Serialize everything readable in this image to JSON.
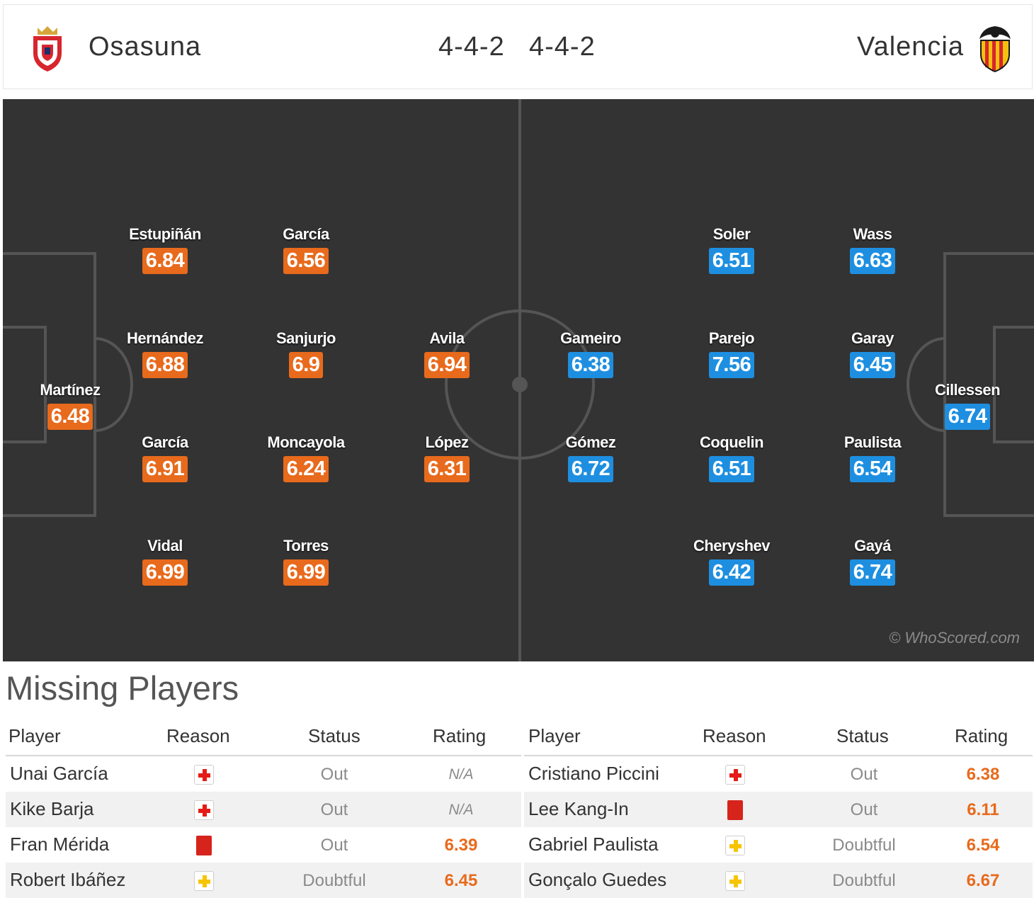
{
  "header": {
    "home_team": "Osasuna",
    "away_team": "Valencia",
    "home_formation": "4-4-2",
    "away_formation": "4-4-2",
    "home_crest_icon": "osasuna-crest-icon",
    "away_crest_icon": "valencia-crest-icon"
  },
  "pitch": {
    "watermark": "© WhoScored.com",
    "colors": {
      "home": "#e86a1c",
      "away": "#1e8fe0",
      "pitch": "#333333"
    },
    "home_players": [
      {
        "name": "Martínez",
        "rating": "6.48"
      },
      {
        "name": "Estupiñán",
        "rating": "6.84"
      },
      {
        "name": "Hernández",
        "rating": "6.88"
      },
      {
        "name": "García",
        "rating": "6.91"
      },
      {
        "name": "Vidal",
        "rating": "6.99"
      },
      {
        "name": "García",
        "rating": "6.56"
      },
      {
        "name": "Sanjurjo",
        "rating": "6.9"
      },
      {
        "name": "Moncayola",
        "rating": "6.24"
      },
      {
        "name": "Torres",
        "rating": "6.99"
      },
      {
        "name": "Avila",
        "rating": "6.94"
      },
      {
        "name": "López",
        "rating": "6.31"
      }
    ],
    "away_players": [
      {
        "name": "Gameiro",
        "rating": "6.38"
      },
      {
        "name": "Gómez",
        "rating": "6.72"
      },
      {
        "name": "Soler",
        "rating": "6.51"
      },
      {
        "name": "Parejo",
        "rating": "7.56"
      },
      {
        "name": "Coquelin",
        "rating": "6.51"
      },
      {
        "name": "Cheryshev",
        "rating": "6.42"
      },
      {
        "name": "Wass",
        "rating": "6.63"
      },
      {
        "name": "Garay",
        "rating": "6.45"
      },
      {
        "name": "Paulista",
        "rating": "6.54"
      },
      {
        "name": "Gayá",
        "rating": "6.74"
      },
      {
        "name": "Cillessen",
        "rating": "6.74"
      }
    ]
  },
  "missing": {
    "title": "Missing Players",
    "columns": {
      "player": "Player",
      "reason": "Reason",
      "status": "Status",
      "rating": "Rating"
    },
    "home": [
      {
        "player": "Unai García",
        "reason": "injury-icon",
        "status": "Out",
        "rating": "N/A"
      },
      {
        "player": "Kike Barja",
        "reason": "injury-icon",
        "status": "Out",
        "rating": "N/A"
      },
      {
        "player": "Fran Mérida",
        "reason": "red-card-icon",
        "status": "Out",
        "rating": "6.39"
      },
      {
        "player": "Robert Ibáñez",
        "reason": "doubtful-icon",
        "status": "Doubtful",
        "rating": "6.45"
      }
    ],
    "away": [
      {
        "player": "Cristiano Piccini",
        "reason": "injury-icon",
        "status": "Out",
        "rating": "6.38"
      },
      {
        "player": "Lee Kang-In",
        "reason": "red-card-icon",
        "status": "Out",
        "rating": "6.11"
      },
      {
        "player": "Gabriel Paulista",
        "reason": "doubtful-icon",
        "status": "Doubtful",
        "rating": "6.54"
      },
      {
        "player": "Gonçalo Guedes",
        "reason": "doubtful-icon",
        "status": "Doubtful",
        "rating": "6.67"
      }
    ]
  }
}
